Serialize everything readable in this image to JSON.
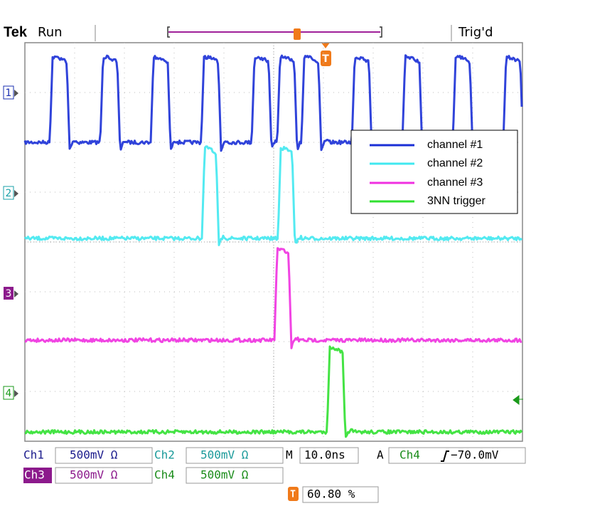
{
  "header": {
    "brand": "Tek",
    "status": "Run",
    "trigger_state": "Trig'd"
  },
  "channels": [
    {
      "marker": "1"
    },
    {
      "marker": "2"
    },
    {
      "marker": "3"
    },
    {
      "marker": "4"
    }
  ],
  "legend": [
    "channel #1",
    "channel #2",
    "channel #3",
    "3NN trigger"
  ],
  "readouts": {
    "ch1": {
      "label": "Ch1",
      "scale": "500mV Ω"
    },
    "ch2": {
      "label": "Ch2",
      "scale": "500mV Ω"
    },
    "ch3": {
      "label": "Ch3",
      "scale": "500mV Ω"
    },
    "ch4": {
      "label": "Ch4",
      "scale": "500mV Ω"
    },
    "timebase": {
      "label": "M",
      "value": "10.0ns"
    },
    "trigger": {
      "label": "A",
      "source": "Ch4",
      "level": "−70.0mV"
    },
    "position": "60.80 %"
  }
}
